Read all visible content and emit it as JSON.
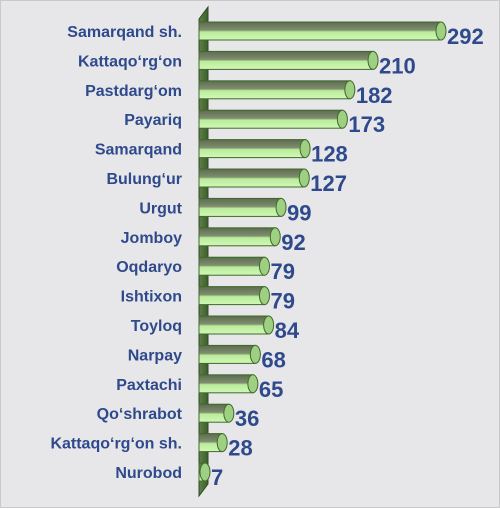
{
  "chart_data": {
    "type": "bar",
    "orientation": "horizontal",
    "title": "",
    "xlabel": "",
    "ylabel": "",
    "grid": false,
    "legend": "none",
    "categories": [
      "Samarqand sh.",
      "Kattaqo‘rg‘on",
      "Pastdarg‘om",
      "Payariq",
      "Samarqand",
      "Bulung‘ur",
      "Urgut",
      "Jomboy",
      "Oqdaryo",
      "Ishtixon",
      "Toyloq",
      "Narpay",
      "Paxtachi",
      "Qo‘shrabot",
      "Kattaqo‘rg‘on sh.",
      "Nurobod"
    ],
    "values": [
      292,
      210,
      182,
      173,
      128,
      127,
      99,
      92,
      79,
      79,
      84,
      68,
      65,
      36,
      28,
      7
    ],
    "xlim": [
      0,
      292
    ]
  },
  "colors": {
    "background": "#e7e7e9",
    "bar_light": "#b9ec9a",
    "bar_dark": "#5e6b51",
    "bar_outline": "#3f6a2a",
    "label": "#2f4a8c"
  }
}
